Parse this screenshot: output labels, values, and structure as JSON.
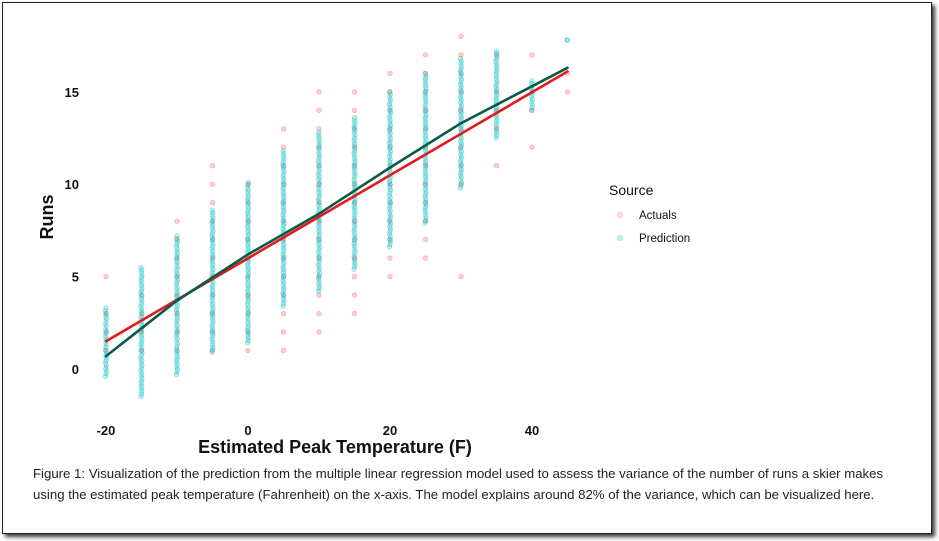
{
  "chart_data": {
    "type": "scatter",
    "xlabel": "Estimated Peak Temperature (F)",
    "ylabel": "Runs",
    "xlim": [
      -22,
      47
    ],
    "ylim": [
      -2,
      18.5
    ],
    "x_ticks": [
      -20,
      0,
      20,
      40
    ],
    "y_ticks": [
      0,
      5,
      10,
      15
    ],
    "grid": false,
    "legend": {
      "title": "Source",
      "position": "right",
      "entries": [
        {
          "label": "Actuals",
          "color": "#F8766D"
        },
        {
          "label": "Prediction",
          "color": "#00BFC4"
        }
      ]
    },
    "series": [
      {
        "name": "Actuals",
        "color": "#F8766D",
        "points": [
          [
            -20,
            5
          ],
          [
            -20,
            3
          ],
          [
            -20,
            2
          ],
          [
            -20,
            1
          ],
          [
            -15,
            4
          ],
          [
            -15,
            3
          ],
          [
            -15,
            2
          ],
          [
            -15,
            1
          ],
          [
            -10,
            8
          ],
          [
            -10,
            7
          ],
          [
            -10,
            6
          ],
          [
            -10,
            5
          ],
          [
            -10,
            4
          ],
          [
            -10,
            3
          ],
          [
            -10,
            2
          ],
          [
            -10,
            1
          ],
          [
            -5,
            11
          ],
          [
            -5,
            10
          ],
          [
            -5,
            9
          ],
          [
            -5,
            8
          ],
          [
            -5,
            7
          ],
          [
            -5,
            6
          ],
          [
            -5,
            5
          ],
          [
            -5,
            4
          ],
          [
            -5,
            3
          ],
          [
            -5,
            2
          ],
          [
            -5,
            1
          ],
          [
            0,
            10
          ],
          [
            0,
            9
          ],
          [
            0,
            8
          ],
          [
            0,
            7
          ],
          [
            0,
            6
          ],
          [
            0,
            5
          ],
          [
            0,
            4
          ],
          [
            0,
            3
          ],
          [
            0,
            2
          ],
          [
            0,
            1
          ],
          [
            5,
            13
          ],
          [
            5,
            12
          ],
          [
            5,
            11
          ],
          [
            5,
            10
          ],
          [
            5,
            9
          ],
          [
            5,
            8
          ],
          [
            5,
            7
          ],
          [
            5,
            6
          ],
          [
            5,
            5
          ],
          [
            5,
            4
          ],
          [
            5,
            3
          ],
          [
            5,
            2
          ],
          [
            5,
            1
          ],
          [
            10,
            15
          ],
          [
            10,
            14
          ],
          [
            10,
            13
          ],
          [
            10,
            12
          ],
          [
            10,
            11
          ],
          [
            10,
            10
          ],
          [
            10,
            9
          ],
          [
            10,
            8
          ],
          [
            10,
            7
          ],
          [
            10,
            6
          ],
          [
            10,
            5
          ],
          [
            10,
            4
          ],
          [
            10,
            3
          ],
          [
            10,
            2
          ],
          [
            15,
            15
          ],
          [
            15,
            14
          ],
          [
            15,
            13
          ],
          [
            15,
            12
          ],
          [
            15,
            11
          ],
          [
            15,
            10
          ],
          [
            15,
            9
          ],
          [
            15,
            8
          ],
          [
            15,
            7
          ],
          [
            15,
            6
          ],
          [
            15,
            5
          ],
          [
            15,
            4
          ],
          [
            15,
            3
          ],
          [
            20,
            16
          ],
          [
            20,
            15
          ],
          [
            20,
            14
          ],
          [
            20,
            13
          ],
          [
            20,
            12
          ],
          [
            20,
            11
          ],
          [
            20,
            10
          ],
          [
            20,
            9
          ],
          [
            20,
            8
          ],
          [
            20,
            7
          ],
          [
            20,
            6
          ],
          [
            20,
            5
          ],
          [
            25,
            17
          ],
          [
            25,
            16
          ],
          [
            25,
            15
          ],
          [
            25,
            14
          ],
          [
            25,
            13
          ],
          [
            25,
            12
          ],
          [
            25,
            11
          ],
          [
            25,
            10
          ],
          [
            25,
            9
          ],
          [
            25,
            8
          ],
          [
            25,
            7
          ],
          [
            25,
            6
          ],
          [
            30,
            18
          ],
          [
            30,
            17
          ],
          [
            30,
            16
          ],
          [
            30,
            15
          ],
          [
            30,
            14
          ],
          [
            30,
            13
          ],
          [
            30,
            12
          ],
          [
            30,
            11
          ],
          [
            30,
            10
          ],
          [
            30,
            5
          ],
          [
            35,
            17
          ],
          [
            35,
            15
          ],
          [
            35,
            14
          ],
          [
            35,
            13
          ],
          [
            35,
            11
          ],
          [
            40,
            17
          ],
          [
            40,
            15
          ],
          [
            40,
            14
          ],
          [
            40,
            12
          ],
          [
            45,
            16
          ],
          [
            45,
            15
          ]
        ]
      },
      {
        "name": "Prediction",
        "color": "#00BFC4",
        "columns": [
          {
            "x": -20,
            "min": -0.4,
            "max": 3.3
          },
          {
            "x": -15,
            "min": -1.5,
            "max": 5.5
          },
          {
            "x": -10,
            "min": -0.3,
            "max": 7.2
          },
          {
            "x": -5,
            "min": 0.9,
            "max": 8.6
          },
          {
            "x": 0,
            "min": 1.4,
            "max": 10.1
          },
          {
            "x": 5,
            "min": 3.4,
            "max": 11.8
          },
          {
            "x": 10,
            "min": 4.2,
            "max": 12.8
          },
          {
            "x": 15,
            "min": 5.4,
            "max": 13.6
          },
          {
            "x": 20,
            "min": 6.6,
            "max": 15.0
          },
          {
            "x": 25,
            "min": 7.9,
            "max": 16.0
          },
          {
            "x": 30,
            "min": 9.8,
            "max": 16.8
          },
          {
            "x": 35,
            "min": 12.5,
            "max": 17.2
          },
          {
            "x": 40,
            "min": 14.0,
            "max": 15.6
          },
          {
            "x": 45,
            "min": 17.8,
            "max": 17.8
          }
        ]
      }
    ],
    "trend_lines": [
      {
        "name": "Actuals",
        "color": "#E31A1C",
        "points": [
          [
            -20,
            1.5
          ],
          [
            45,
            16.1
          ]
        ]
      },
      {
        "name": "Prediction",
        "color": "#0B5A48",
        "points": [
          [
            -20,
            0.7
          ],
          [
            -10,
            3.7
          ],
          [
            0,
            6.2
          ],
          [
            10,
            8.4
          ],
          [
            20,
            10.9
          ],
          [
            30,
            13.3
          ],
          [
            40,
            15.3
          ],
          [
            45,
            16.3
          ]
        ]
      }
    ]
  },
  "caption": "Figure 1: Visualization of the prediction from the multiple linear regression model used to assess the variance of the number of runs a skier makes using the estimated peak temperature (Fahrenheit) on the x-axis. The model explains around 82% of the variance, which can be visualized here."
}
